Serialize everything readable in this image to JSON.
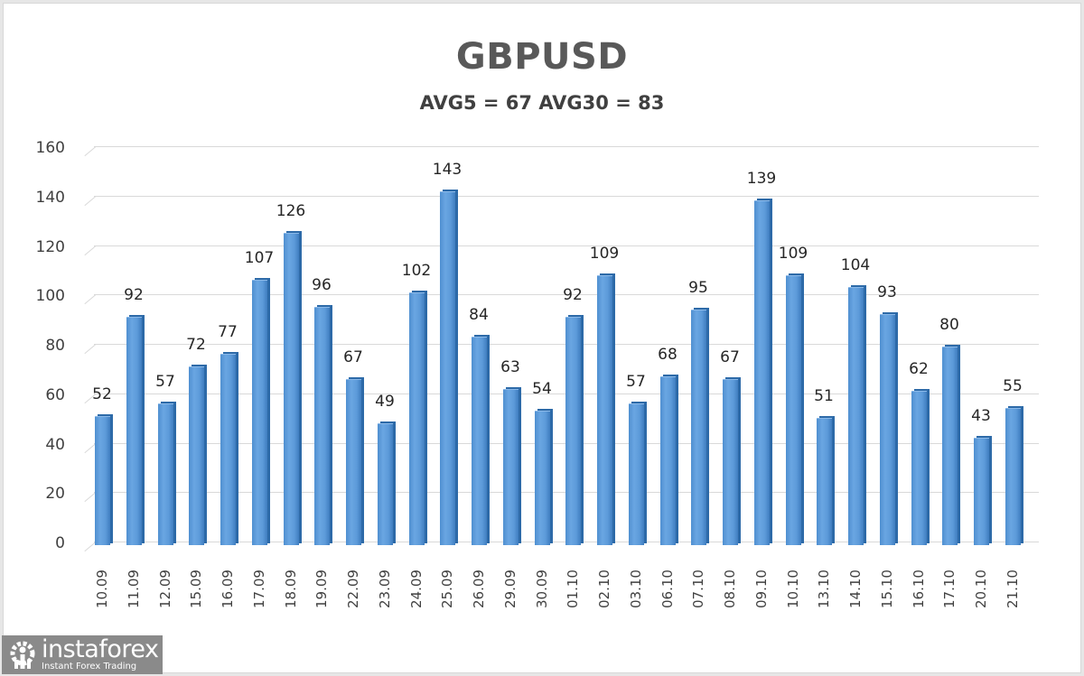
{
  "chart_data": {
    "type": "bar",
    "title": "GBPUSD",
    "subtitle": "AVG5 = 67 AVG30 = 83",
    "xlabel": "",
    "ylabel": "",
    "ylim": [
      0,
      160
    ],
    "yticks": [
      0,
      20,
      40,
      60,
      80,
      100,
      120,
      140,
      160
    ],
    "grid": true,
    "legend": null,
    "style": "3D column",
    "categories": [
      "10.09",
      "11.09",
      "12.09",
      "15.09",
      "16.09",
      "17.09",
      "18.09",
      "19.09",
      "22.09",
      "23.09",
      "24.09",
      "25.09",
      "26.09",
      "29.09",
      "30.09",
      "01.10",
      "02.10",
      "03.10",
      "06.10",
      "07.10",
      "08.10",
      "09.10",
      "10.10",
      "13.10",
      "14.10",
      "15.10",
      "16.10",
      "17.10",
      "20.10",
      "21.10"
    ],
    "values": [
      52,
      92,
      57,
      72,
      77,
      107,
      126,
      96,
      67,
      49,
      102,
      143,
      84,
      63,
      54,
      92,
      109,
      57,
      68,
      95,
      67,
      139,
      109,
      51,
      104,
      93,
      62,
      80,
      43,
      55
    ],
    "bar_color": "#5b9bd5"
  },
  "logo": {
    "name": "instaforex",
    "tagline": "Instant Forex Trading",
    "icon": "gear-person-icon"
  }
}
